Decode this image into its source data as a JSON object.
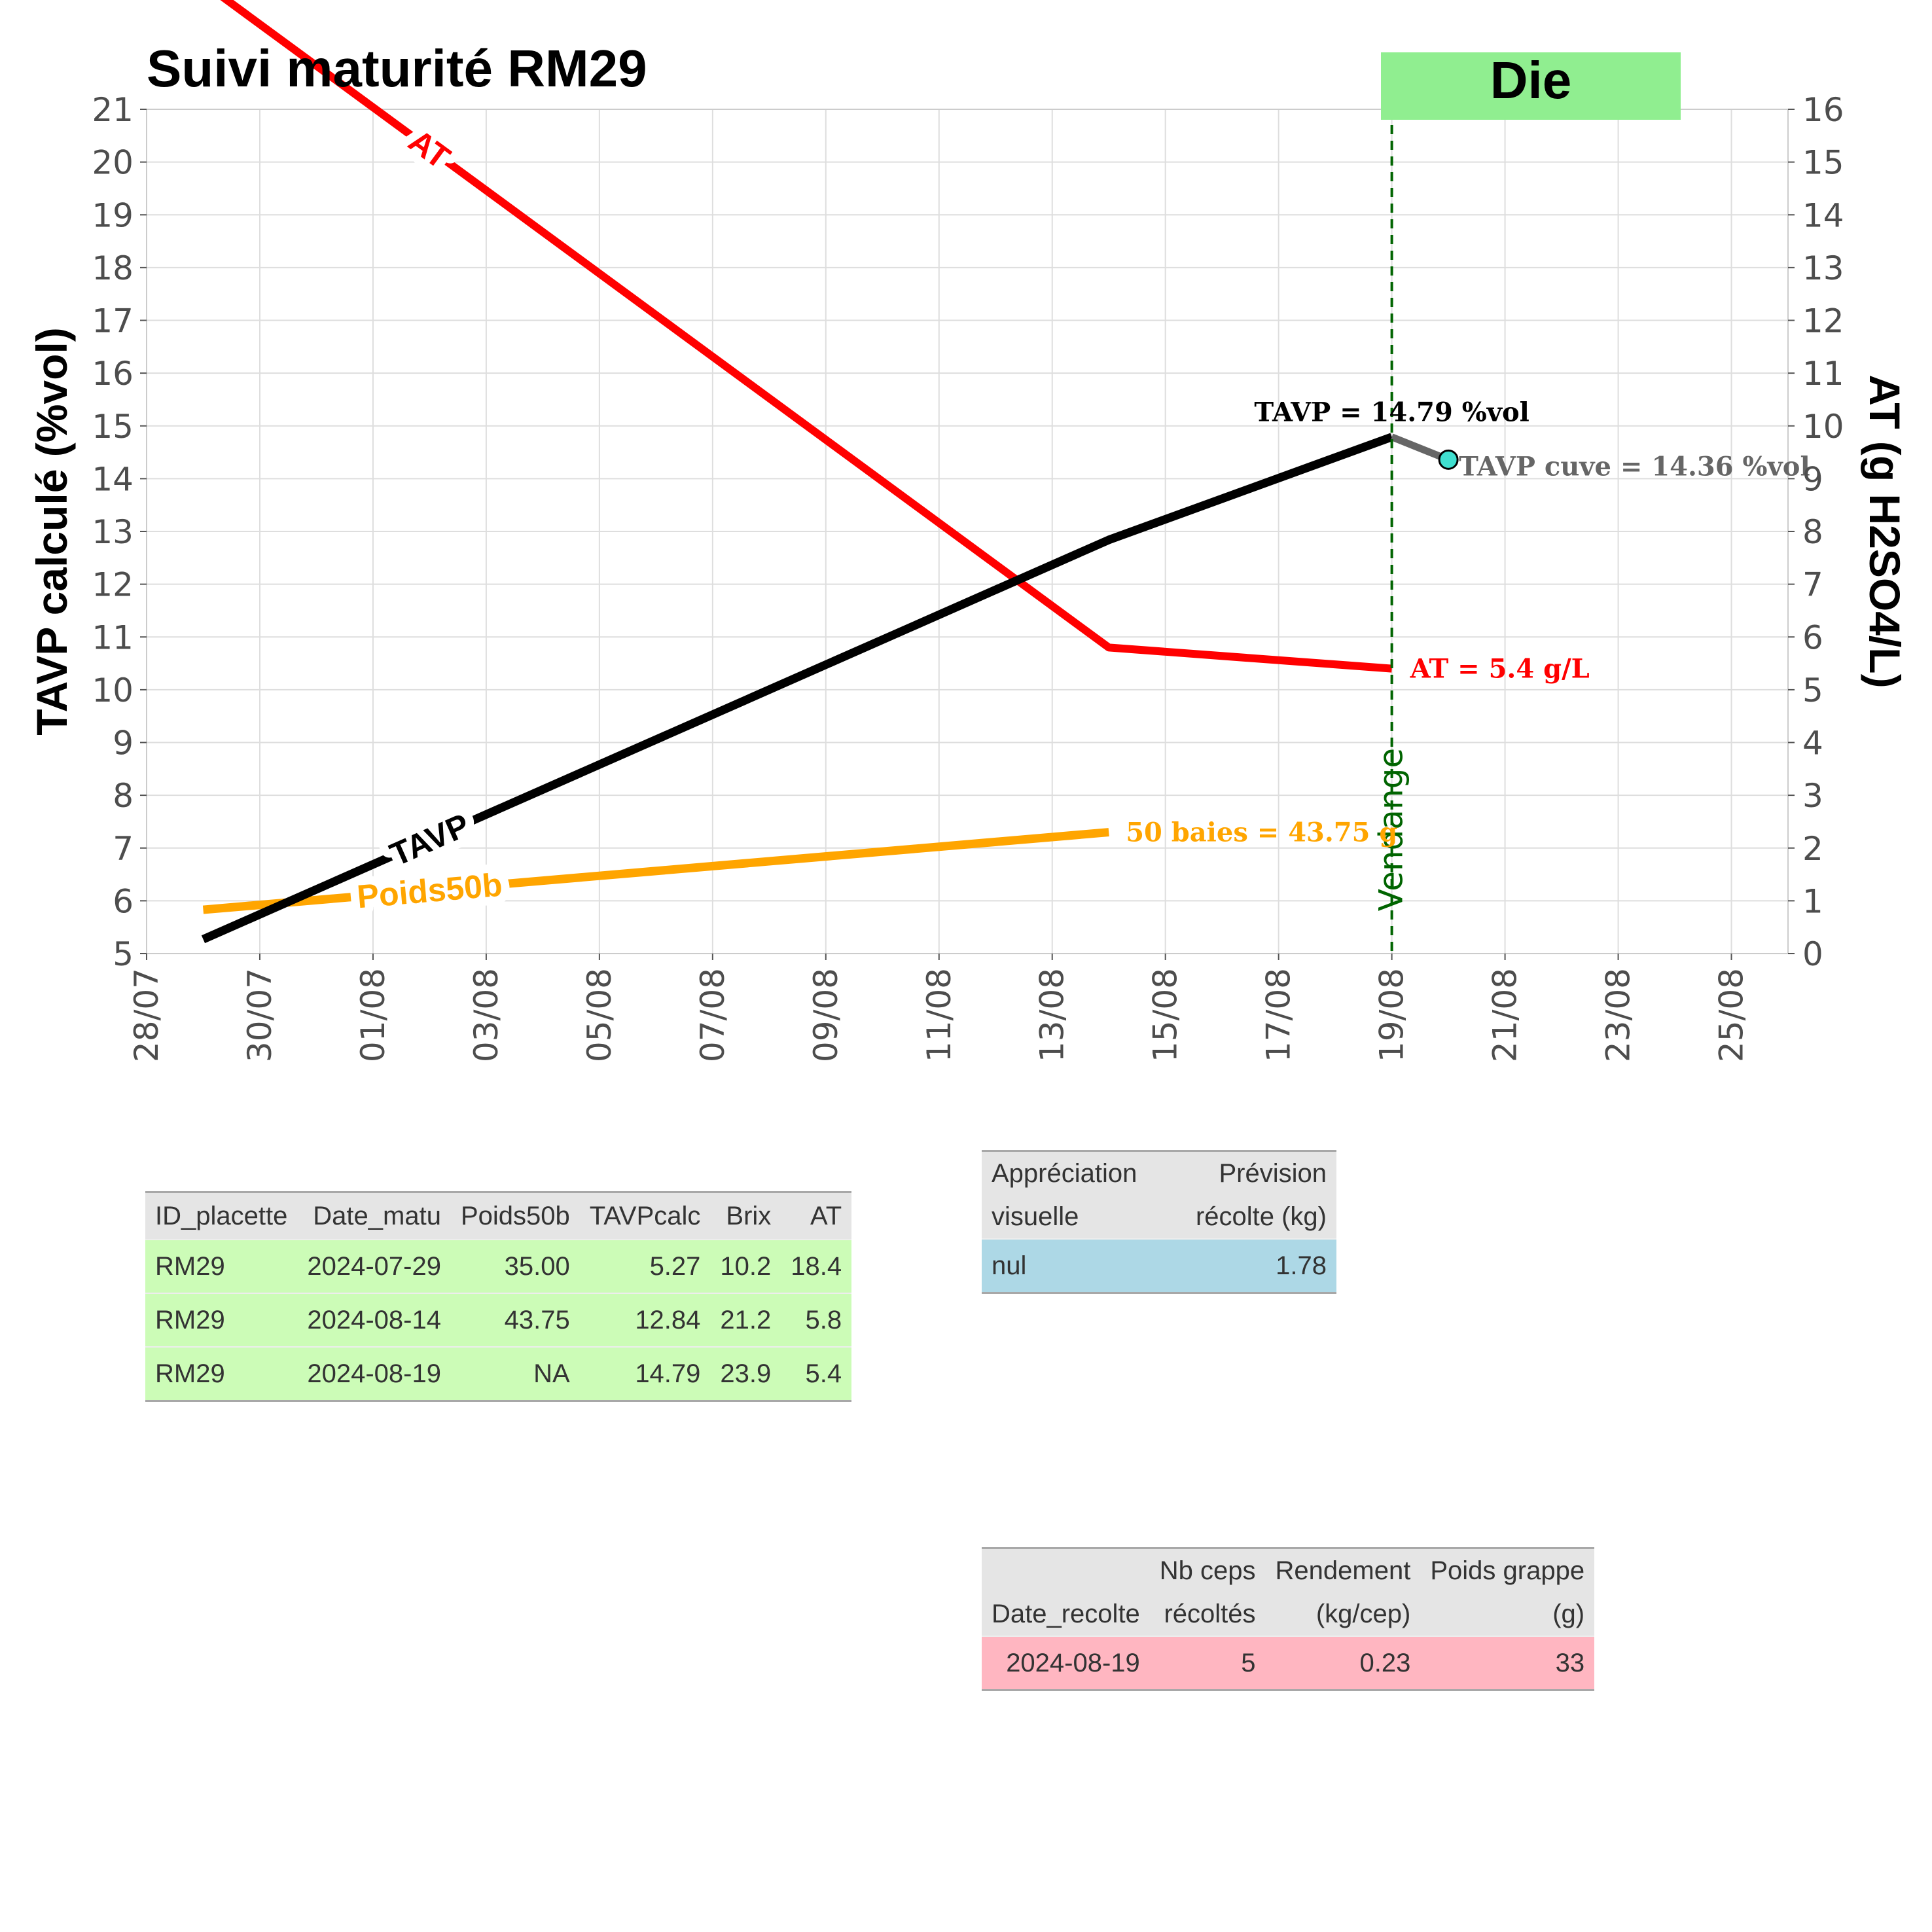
{
  "chart_data": {
    "type": "line",
    "title": "Suivi maturité  RM29",
    "badge": {
      "text": "Die",
      "color": "#90ee90"
    },
    "ylabel": "TAVP calculé (%vol)",
    "y2label": "AT (g H2SO4/L)",
    "ylim": [
      5,
      21
    ],
    "y2lim": [
      0,
      16
    ],
    "xlim": [
      "2024-07-28",
      "2024-08-26"
    ],
    "y_ticks": [
      "5",
      "6",
      "7",
      "8",
      "9",
      "10",
      "11",
      "12",
      "13",
      "14",
      "15",
      "16",
      "17",
      "18",
      "19",
      "20",
      "21"
    ],
    "y2_ticks": [
      "0",
      "1",
      "2",
      "3",
      "4",
      "5",
      "6",
      "7",
      "8",
      "9",
      "10",
      "11",
      "12",
      "13",
      "14",
      "15",
      "16"
    ],
    "x_ticks": [
      {
        "date": "2024-07-28",
        "label": "28/07"
      },
      {
        "date": "2024-07-30",
        "label": "30/07"
      },
      {
        "date": "2024-08-01",
        "label": "01/08"
      },
      {
        "date": "2024-08-03",
        "label": "03/08"
      },
      {
        "date": "2024-08-05",
        "label": "05/08"
      },
      {
        "date": "2024-08-07",
        "label": "07/08"
      },
      {
        "date": "2024-08-09",
        "label": "09/08"
      },
      {
        "date": "2024-08-11",
        "label": "11/08"
      },
      {
        "date": "2024-08-13",
        "label": "13/08"
      },
      {
        "date": "2024-08-15",
        "label": "15/08"
      },
      {
        "date": "2024-08-17",
        "label": "17/08"
      },
      {
        "date": "2024-08-19",
        "label": "19/08"
      },
      {
        "date": "2024-08-21",
        "label": "21/08"
      },
      {
        "date": "2024-08-23",
        "label": "23/08"
      },
      {
        "date": "2024-08-25",
        "label": "25/08"
      }
    ],
    "grid": true,
    "series": [
      {
        "name": "TAVP",
        "axis": "left",
        "color": "#000000",
        "points": [
          [
            "2024-07-29",
            5.27
          ],
          [
            "2024-08-14",
            12.84
          ],
          [
            "2024-08-19",
            14.79
          ]
        ],
        "label_text": "TAVP",
        "label_date": "2024-08-02"
      },
      {
        "name": "AT",
        "axis": "right",
        "color": "#ff0000",
        "points": [
          [
            "2024-07-29",
            18.4
          ],
          [
            "2024-08-14",
            5.8
          ],
          [
            "2024-08-19",
            5.4
          ]
        ],
        "label_text": "AT",
        "label_date": "2024-08-02"
      },
      {
        "name": "Poids50b",
        "axis": "left",
        "color": "#ffa500",
        "points": [
          [
            "2024-07-29",
            5.83
          ],
          [
            "2024-08-14",
            7.3
          ]
        ],
        "label_text": "Poids50b",
        "label_date": "2024-08-02"
      },
      {
        "name": "TAVP cuve",
        "axis": "left",
        "color": "#666666",
        "points": [
          [
            "2024-08-19",
            14.79
          ],
          [
            "2024-08-20",
            14.36
          ]
        ]
      }
    ],
    "cuve_point": {
      "date": "2024-08-20",
      "value": 14.36,
      "color": "#40e0d0"
    },
    "vline": {
      "date": "2024-08-19",
      "label": "Vendange",
      "color": "#006400"
    },
    "annotations": [
      {
        "text": "TAVP = 14.79 %vol",
        "color": "#000000"
      },
      {
        "text": "TAVP cuve = 14.36 %vol",
        "color": "#666666"
      },
      {
        "text": "AT = 5.4 g/L",
        "color": "#ff0000"
      },
      {
        "text": "50 baies = 43.75 g",
        "color": "#ffa500"
      }
    ]
  },
  "tables": {
    "maturite": {
      "headers": [
        "ID_placette",
        "Date_matu",
        "Poids50b",
        "TAVPcalc",
        "Brix",
        "AT"
      ],
      "rows": [
        [
          "RM29",
          "2024-07-29",
          "35.00",
          "5.27",
          "10.2",
          "18.4"
        ],
        [
          "RM29",
          "2024-08-14",
          "43.75",
          "12.84",
          "21.2",
          "5.8"
        ],
        [
          "RM29",
          "2024-08-19",
          "NA",
          "14.79",
          "23.9",
          "5.4"
        ]
      ],
      "color": "#ccfcb7"
    },
    "prevision": {
      "headers": [
        [
          "Appréciation",
          "visuelle"
        ],
        [
          "Prévision",
          "récolte (kg)"
        ]
      ],
      "rows": [
        [
          "nul",
          "1.78"
        ]
      ],
      "color": "#add8e6"
    },
    "recolte": {
      "headers": [
        [
          "",
          "Date_recolte"
        ],
        [
          "Nb ceps",
          "récoltés"
        ],
        [
          "Rendement",
          "(kg/cep)"
        ],
        [
          "Poids grappe",
          "(g)"
        ]
      ],
      "rows": [
        [
          "2024-08-19",
          "5",
          "0.23",
          "33"
        ]
      ],
      "color": "#ffb6c1"
    }
  }
}
